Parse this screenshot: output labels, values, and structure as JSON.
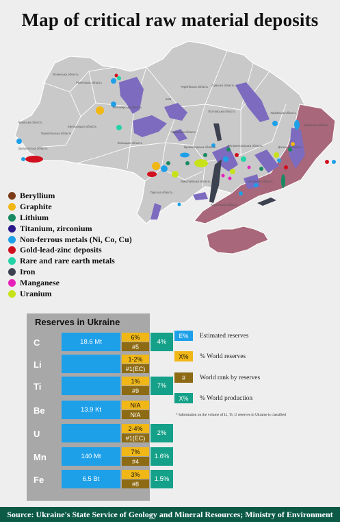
{
  "title": "Map of critical raw material deposits",
  "map": {
    "oblasts": [
      {
        "name": "Волинська область",
        "kind": "oblast-label"
      },
      {
        "name": "Рівненська область",
        "kind": "oblast-label"
      },
      {
        "name": "Житомирська область",
        "kind": "oblast-label"
      },
      {
        "name": "Київ",
        "kind": "city-label"
      },
      {
        "name": "Чернігівська область",
        "kind": "oblast-label"
      },
      {
        "name": "Сумська область",
        "kind": "oblast-label"
      },
      {
        "name": "Харківська область",
        "kind": "oblast-label"
      },
      {
        "name": "Луганська область",
        "kind": "oblast-label"
      },
      {
        "name": "Полтавська область",
        "kind": "oblast-label"
      },
      {
        "name": "Львівська область",
        "kind": "oblast-label"
      },
      {
        "name": "Хмельницька область",
        "kind": "oblast-label"
      },
      {
        "name": "Тернопільська область",
        "kind": "oblast-label"
      },
      {
        "name": "Вінницька область",
        "kind": "oblast-label"
      },
      {
        "name": "Черкаська область",
        "kind": "oblast-label"
      },
      {
        "name": "Кіровоградська область",
        "kind": "oblast-label"
      },
      {
        "name": "Дніпропетровська область",
        "kind": "oblast-label"
      },
      {
        "name": "Донецька область",
        "kind": "oblast-label"
      },
      {
        "name": "Закарпатська область",
        "kind": "oblast-label"
      },
      {
        "name": "Миколаївська область",
        "kind": "oblast-label"
      },
      {
        "name": "Одеська область",
        "kind": "oblast-label"
      },
      {
        "name": "Херсонська область",
        "kind": "oblast-label"
      },
      {
        "name": "Запорізька область",
        "kind": "oblast-label"
      }
    ],
    "colors": {
      "territory": "#c9c9c9",
      "occupied": "#a8677a",
      "titanium_zone": "#7c6bbf"
    }
  },
  "legend": [
    {
      "label": "Beryllium",
      "color": "#7a3b16"
    },
    {
      "label": "Graphite",
      "color": "#f0b716"
    },
    {
      "label": "Lithium",
      "color": "#188a62"
    },
    {
      "label": "Titanium, zirconium",
      "color": "#2b1a8c"
    },
    {
      "label": "Non-ferrous metals (Ni, Co, Cu)",
      "color": "#1ea0e9"
    },
    {
      "label": "Gold-lead-zinc deposits",
      "color": "#d0101e"
    },
    {
      "label": "Rare and rare earth metals",
      "color": "#24d3a7"
    },
    {
      "label": "Iron",
      "color": "#3c4150"
    },
    {
      "label": "Manganese",
      "color": "#e81fb8"
    },
    {
      "label": "Uranium",
      "color": "#c8e21a"
    }
  ],
  "reserves": {
    "title": "Reserves in Ukraine",
    "rows": [
      {
        "element": "C",
        "estimated": "18.6 Mt",
        "world_reserves": "6%",
        "rank": "#5",
        "production": "4%"
      },
      {
        "element": "Li",
        "estimated": "",
        "world_reserves": "1-2%",
        "rank": "#1(EC)",
        "production": null
      },
      {
        "element": "Ti",
        "estimated": "",
        "world_reserves": "1%",
        "rank": "#9",
        "production": "7%"
      },
      {
        "element": "Be",
        "estimated": "13.9 Kt",
        "world_reserves": "N/A",
        "rank": "N/A",
        "production": null
      },
      {
        "element": "U",
        "estimated": "",
        "world_reserves": "2-4%",
        "rank": "#1(EC)",
        "production": "2%"
      },
      {
        "element": "Mn",
        "estimated": "140 Mt",
        "world_reserves": "7%",
        "rank": "#4",
        "production": "1.6%"
      },
      {
        "element": "Fe",
        "estimated": "6.5 Bt",
        "world_reserves": "3%",
        "rank": "#8",
        "production": "1.5%"
      }
    ]
  },
  "key": [
    {
      "box": "E%",
      "label": "Estimated reserves",
      "color": "#1ea0e9"
    },
    {
      "box": "X%",
      "label": "% World reserves",
      "color": "#f0b716"
    },
    {
      "box": "#",
      "label": "World rank by reserves",
      "color": "#8d6b14"
    },
    {
      "box": "X%",
      "label": "% World production",
      "color": "#15a189"
    }
  ],
  "note": "* Information on the volume of Li, Ti, U reserves in Ukraine is classified",
  "footer": "Source: Ukraine's State Service of Geology and Mineral Resources; Ministry of Environment"
}
